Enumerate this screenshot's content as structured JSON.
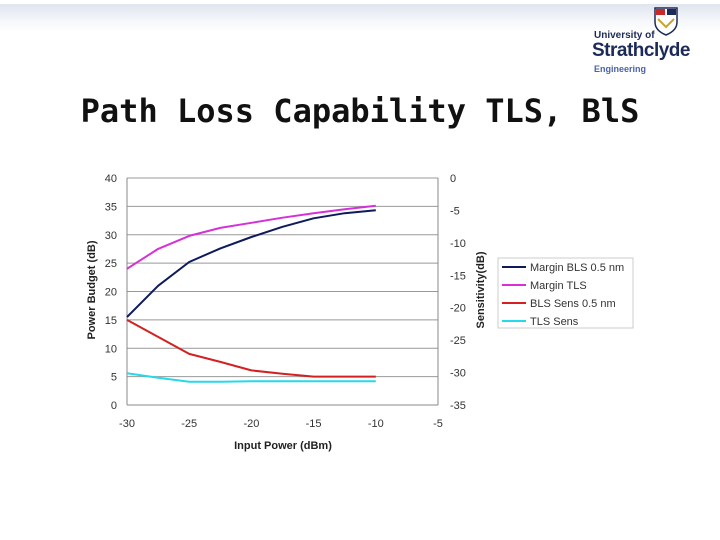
{
  "header": {
    "logo": {
      "university_of": "University of",
      "name": "Strathclyde",
      "faculty": "Engineering"
    }
  },
  "slide": {
    "title": "Path Loss Capability TLS, BlS"
  },
  "chart_data": {
    "type": "line",
    "title": "",
    "xlabel": "Input Power (dBm)",
    "ylabel": "Power Budget (dB)",
    "y2label": "Sensitivity(dB)",
    "xlim": [
      -30,
      -5
    ],
    "ylim": [
      0,
      40
    ],
    "y2lim": [
      -35,
      0
    ],
    "xticks": [
      -30,
      -25,
      -20,
      -15,
      -10,
      -5
    ],
    "yticks": [
      0,
      5,
      10,
      15,
      20,
      25,
      30,
      35,
      40
    ],
    "y2ticks": [
      0,
      -5,
      -10,
      -15,
      -20,
      -25,
      -30,
      -35
    ],
    "grid": "horizontal",
    "legend_position": "right",
    "series": [
      {
        "name": "Margin BLS 0.5 nm",
        "axis": "left",
        "color": "#0d1a5c",
        "x": [
          -30,
          -27.5,
          -25,
          -22.5,
          -20,
          -17.5,
          -15,
          -12.5,
          -10
        ],
        "y": [
          15.5,
          21,
          25.2,
          27.6,
          29.6,
          31.4,
          32.9,
          33.8,
          34.3
        ]
      },
      {
        "name": "Margin TLS",
        "axis": "left",
        "color": "#d531d8",
        "x": [
          -30,
          -27.5,
          -25,
          -22.5,
          -20,
          -17.5,
          -15,
          -12.5,
          -10
        ],
        "y": [
          24,
          27.5,
          29.8,
          31.2,
          32.1,
          33,
          33.8,
          34.5,
          35.1
        ]
      },
      {
        "name": "BLS Sens 0.5 nm",
        "axis": "left",
        "color": "#d42020",
        "x": [
          -30,
          -27.5,
          -25,
          -22.5,
          -20,
          -17.5,
          -15,
          -12.5,
          -10
        ],
        "y": [
          15,
          12,
          9,
          7.6,
          6.1,
          5.5,
          5,
          5,
          5
        ]
      },
      {
        "name": "TLS Sens",
        "axis": "left",
        "color": "#26d8e8",
        "x": [
          -30,
          -27.5,
          -25,
          -22.5,
          -20,
          -17.5,
          -15,
          -12.5,
          -10
        ],
        "y": [
          5.6,
          4.8,
          4.1,
          4.1,
          4.2,
          4.2,
          4.2,
          4.2,
          4.2
        ]
      }
    ]
  },
  "colors": {
    "grid": "#999999",
    "axis": "#888888",
    "tick_label": "#333333"
  }
}
